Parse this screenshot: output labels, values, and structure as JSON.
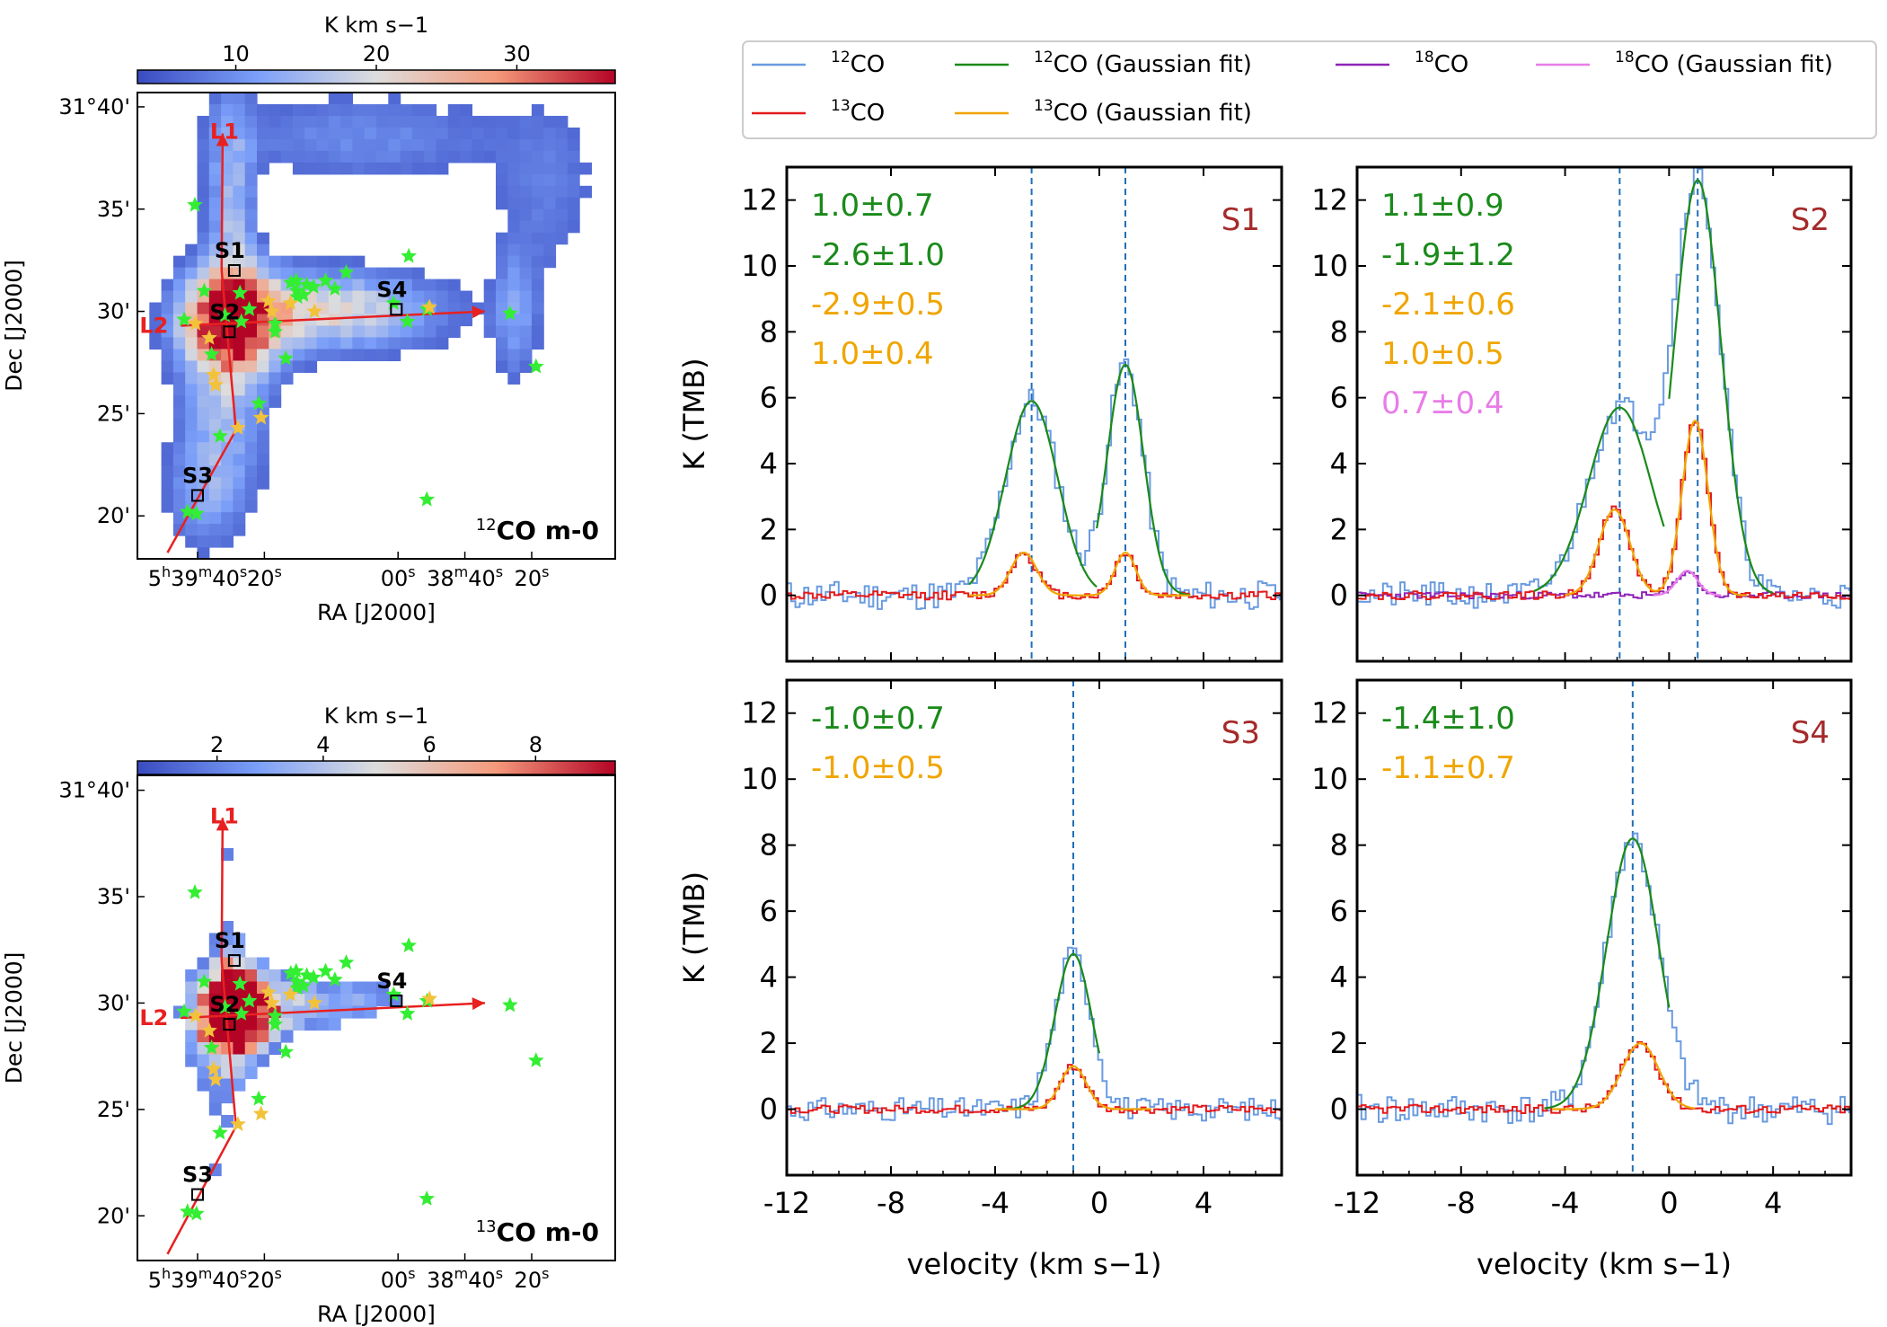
{
  "colors": {
    "co12": "#6a9be0",
    "co13": "#e31a1c",
    "c18o": "#8e24b8",
    "fit12": "#1a8a1a",
    "fit13": "#f0a500",
    "fit18": "#e87ce8",
    "label": "#a52a2a",
    "track": "#e82020",
    "ysoGreen": "#33ee33",
    "ysoYellow": "#f2c23a",
    "vline": "#1f6fb8"
  },
  "chart_data": [
    {
      "id": "map12",
      "type": "heatmap",
      "title": "12CO m-0",
      "title_sup": "12",
      "title_rest": "CO m-0",
      "colorbar": {
        "label": "K km s−1",
        "range": [
          3,
          37
        ],
        "ticks": [
          {
            "v": 10,
            "t": "10"
          },
          {
            "v": 20,
            "t": "20"
          },
          {
            "v": 30,
            "t": "30"
          }
        ]
      },
      "xlabel": "RA [J2000]",
      "ylabel": "Dec [J2000]",
      "ra_range_s": [
        -98,
        45
      ],
      "dec_range_min": [
        17.9,
        40.7
      ],
      "xticks": [
        {
          "v": -80,
          "main": "5",
          "s1": "h",
          "m2": "39",
          "s2": "m",
          "m3": "40",
          "s3": "s"
        },
        {
          "v": -60,
          "main": "20",
          "s1": "s"
        },
        {
          "v": -20,
          "main": "00",
          "s1": "s"
        },
        {
          "v": 0,
          "main": "38",
          "s1": "m",
          "m2": "40",
          "s2": "s"
        },
        {
          "v": 20,
          "main": "20",
          "s1": "s"
        }
      ],
      "yticks": [
        {
          "v": 40,
          "t": "31°40'"
        },
        {
          "v": 35,
          "t": "35'"
        },
        {
          "v": 30,
          "t": "30'"
        },
        {
          "v": 25,
          "t": "25'"
        },
        {
          "v": 20,
          "t": "20'"
        }
      ]
    },
    {
      "id": "map13",
      "type": "heatmap",
      "title": "13CO m-0",
      "title_sup": "13",
      "title_rest": "CO m-0",
      "colorbar": {
        "label": "K km s−1",
        "range": [
          0.5,
          9.5
        ],
        "ticks": [
          {
            "v": 2,
            "t": "2"
          },
          {
            "v": 4,
            "t": "4"
          },
          {
            "v": 6,
            "t": "6"
          },
          {
            "v": 8,
            "t": "8"
          }
        ]
      },
      "xlabel": "RA [J2000]",
      "ylabel": "Dec [J2000]",
      "ra_range_s": [
        -98,
        45
      ],
      "dec_range_min": [
        17.9,
        40.7
      ],
      "xticks": [
        {
          "v": -80,
          "main": "5",
          "s1": "h",
          "m2": "39",
          "s2": "m",
          "m3": "40",
          "s3": "s"
        },
        {
          "v": -60,
          "main": "20",
          "s1": "s"
        },
        {
          "v": -20,
          "main": "00",
          "s1": "s"
        },
        {
          "v": 0,
          "main": "38",
          "s1": "m",
          "m2": "40",
          "s2": "s"
        },
        {
          "v": 20,
          "main": "20",
          "s1": "s"
        }
      ],
      "yticks": [
        {
          "v": 40,
          "t": "31°40'"
        },
        {
          "v": 35,
          "t": "35'"
        },
        {
          "v": 30,
          "t": "30'"
        },
        {
          "v": 25,
          "t": "25'"
        },
        {
          "v": 20,
          "t": "20'"
        }
      ]
    },
    {
      "id": "legend",
      "type": "legend",
      "entries": [
        {
          "sup": "12",
          "text": "CO",
          "color": "co12"
        },
        {
          "sup": "12",
          "text": "CO (Gaussian fit)",
          "color": "fit12"
        },
        {
          "sup": "18",
          "text": "CO",
          "color": "c18o"
        },
        {
          "sup": "18",
          "text": "CO (Gaussian fit)",
          "color": "fit18"
        },
        {
          "sup": "13",
          "text": "CO",
          "color": "co13"
        },
        {
          "sup": "13",
          "text": "CO (Gaussian fit)",
          "color": "fit13"
        }
      ]
    },
    {
      "id": "S1",
      "type": "line",
      "label": "S1",
      "xlim": [
        -12,
        7
      ],
      "ylim": [
        -2,
        13
      ],
      "xticks": [
        {
          "v": -12,
          "t": "-12"
        },
        {
          "v": -8,
          "t": "-8"
        },
        {
          "v": -4,
          "t": "-4"
        },
        {
          "v": 0,
          "t": "0"
        },
        {
          "v": 4,
          "t": "4"
        }
      ],
      "yticks": [
        {
          "v": 0,
          "t": "0"
        },
        {
          "v": 2,
          "t": "2"
        },
        {
          "v": 4,
          "t": "4"
        },
        {
          "v": 6,
          "t": "6"
        },
        {
          "v": 8,
          "t": "8"
        },
        {
          "v": 10,
          "t": "10"
        },
        {
          "v": 12,
          "t": "12"
        }
      ],
      "ylabel": "K (TMB)",
      "xlabel": "",
      "vlines": [
        -2.6,
        1.0
      ],
      "annotations": [
        {
          "text": "1.0±0.7",
          "color": "fit12"
        },
        {
          "text": "-2.6±1.0",
          "color": "fit12"
        },
        {
          "text": "-2.9±0.5",
          "color": "fit13"
        },
        {
          "text": "1.0±0.4",
          "color": "fit13"
        }
      ],
      "series": [
        {
          "name": "12CO",
          "color": "co12",
          "components": [
            {
              "a": 5.9,
              "v": -2.6,
              "s": 1.0
            },
            {
              "a": 7.0,
              "v": 1.0,
              "s": 0.7
            }
          ],
          "noise": 0.45,
          "range": [
            -12,
            7
          ],
          "seed": 11
        },
        {
          "name": "13CO",
          "color": "co13",
          "components": [
            {
              "a": 1.3,
              "v": -2.9,
              "s": 0.5
            },
            {
              "a": 1.3,
              "v": 1.0,
              "s": 0.4
            }
          ],
          "noise": 0.13,
          "range": [
            -12,
            7
          ],
          "seed": 12
        },
        {
          "name": "12CO fit a",
          "color": "fit12",
          "fit": true,
          "components": [
            {
              "a": 5.9,
              "v": -2.6,
              "s": 1.0
            }
          ],
          "range": [
            -5.0,
            -0.1
          ]
        },
        {
          "name": "12CO fit b",
          "color": "fit12",
          "fit": true,
          "components": [
            {
              "a": 7.0,
              "v": 1.0,
              "s": 0.7
            }
          ],
          "range": [
            -0.1,
            3.5
          ]
        },
        {
          "name": "13CO fit",
          "color": "fit13",
          "fit": true,
          "components": [
            {
              "a": 1.3,
              "v": -2.9,
              "s": 0.5
            },
            {
              "a": 1.3,
              "v": 1.0,
              "s": 0.4
            }
          ],
          "range": [
            -5.0,
            3.5
          ]
        }
      ]
    },
    {
      "id": "S2",
      "type": "line",
      "label": "S2",
      "xlim": [
        -12,
        7
      ],
      "ylim": [
        -2,
        13
      ],
      "xticks": [
        {
          "v": -12,
          "t": "-12"
        },
        {
          "v": -8,
          "t": "-8"
        },
        {
          "v": -4,
          "t": "-4"
        },
        {
          "v": 0,
          "t": "0"
        },
        {
          "v": 4,
          "t": "4"
        }
      ],
      "yticks": [
        {
          "v": 0,
          "t": "0"
        },
        {
          "v": 2,
          "t": "2"
        },
        {
          "v": 4,
          "t": "4"
        },
        {
          "v": 6,
          "t": "6"
        },
        {
          "v": 8,
          "t": "8"
        },
        {
          "v": 10,
          "t": "10"
        },
        {
          "v": 12,
          "t": "12"
        }
      ],
      "ylabel": "",
      "xlabel": "",
      "vlines": [
        -1.9,
        1.1
      ],
      "annotations": [
        {
          "text": "1.1±0.9",
          "color": "fit12"
        },
        {
          "text": "-1.9±1.2",
          "color": "fit12"
        },
        {
          "text": "-2.1±0.6",
          "color": "fit13"
        },
        {
          "text": "1.0±0.5",
          "color": "fit13"
        },
        {
          "text": "0.7±0.4",
          "color": "fit18"
        }
      ],
      "series": [
        {
          "name": "12CO",
          "color": "co12",
          "components": [
            {
              "a": 5.7,
              "v": -1.9,
              "s": 1.2
            },
            {
              "a": 12.6,
              "v": 1.1,
              "s": 0.9
            }
          ],
          "noise": 0.4,
          "range": [
            -12,
            7
          ],
          "seed": 21
        },
        {
          "name": "C18O",
          "color": "c18o",
          "components": [
            {
              "a": 0.75,
              "v": 0.7,
              "s": 0.4
            }
          ],
          "noise": 0.1,
          "range": [
            -12,
            7
          ],
          "seed": 23
        },
        {
          "name": "13CO",
          "color": "co13",
          "components": [
            {
              "a": 2.6,
              "v": -2.1,
              "s": 0.6
            },
            {
              "a": 5.3,
              "v": 1.0,
              "s": 0.5
            }
          ],
          "noise": 0.12,
          "range": [
            -12,
            7
          ],
          "seed": 22
        },
        {
          "name": "12CO fit a",
          "color": "fit12",
          "fit": true,
          "components": [
            {
              "a": 5.7,
              "v": -1.9,
              "s": 1.2
            }
          ],
          "range": [
            -5.2,
            -0.2
          ]
        },
        {
          "name": "12CO fit b",
          "color": "fit12",
          "fit": true,
          "components": [
            {
              "a": 12.6,
              "v": 1.1,
              "s": 0.9
            }
          ],
          "range": [
            0.0,
            4.0
          ]
        },
        {
          "name": "13CO fit",
          "color": "fit13",
          "fit": true,
          "components": [
            {
              "a": 2.6,
              "v": -2.1,
              "s": 0.6
            },
            {
              "a": 5.3,
              "v": 1.0,
              "s": 0.5
            }
          ],
          "range": [
            -4.0,
            3.0
          ]
        },
        {
          "name": "C18O fit",
          "color": "fit18",
          "fit": true,
          "components": [
            {
              "a": 0.75,
              "v": 0.7,
              "s": 0.4
            }
          ],
          "range": [
            -0.6,
            2.0
          ]
        }
      ]
    },
    {
      "id": "S3",
      "type": "line",
      "label": "S3",
      "xlim": [
        -12,
        7
      ],
      "ylim": [
        -2,
        13
      ],
      "xticks": [
        {
          "v": -12,
          "t": "-12"
        },
        {
          "v": -8,
          "t": "-8"
        },
        {
          "v": -4,
          "t": "-4"
        },
        {
          "v": 0,
          "t": "0"
        },
        {
          "v": 4,
          "t": "4"
        }
      ],
      "yticks": [
        {
          "v": 0,
          "t": "0"
        },
        {
          "v": 2,
          "t": "2"
        },
        {
          "v": 4,
          "t": "4"
        },
        {
          "v": 6,
          "t": "6"
        },
        {
          "v": 8,
          "t": "8"
        },
        {
          "v": 10,
          "t": "10"
        },
        {
          "v": 12,
          "t": "12"
        }
      ],
      "ylabel": "K (TMB)",
      "xlabel": "velocity (km s−1)",
      "vlines": [
        -1.0
      ],
      "annotations": [
        {
          "text": "-1.0±0.7",
          "color": "fit12"
        },
        {
          "text": "-1.0±0.5",
          "color": "fit13"
        }
      ],
      "series": [
        {
          "name": "12CO",
          "color": "co12",
          "components": [
            {
              "a": 4.7,
              "v": -1.0,
              "s": 0.7
            }
          ],
          "noise": 0.35,
          "range": [
            -12,
            7
          ],
          "seed": 31
        },
        {
          "name": "13CO",
          "color": "co13",
          "components": [
            {
              "a": 1.3,
              "v": -1.0,
              "s": 0.5
            }
          ],
          "noise": 0.12,
          "range": [
            -12,
            7
          ],
          "seed": 32
        },
        {
          "name": "12CO fit",
          "color": "fit12",
          "fit": true,
          "components": [
            {
              "a": 4.7,
              "v": -1.0,
              "s": 0.7
            }
          ],
          "range": [
            -3.8,
            0.0
          ]
        },
        {
          "name": "13CO fit",
          "color": "fit13",
          "fit": true,
          "components": [
            {
              "a": 1.3,
              "v": -1.0,
              "s": 0.5
            }
          ],
          "range": [
            -4.0,
            2.0
          ]
        }
      ]
    },
    {
      "id": "S4",
      "type": "line",
      "label": "S4",
      "xlim": [
        -12,
        7
      ],
      "ylim": [
        -2,
        13
      ],
      "xticks": [
        {
          "v": -12,
          "t": "-12"
        },
        {
          "v": -8,
          "t": "-8"
        },
        {
          "v": -4,
          "t": "-4"
        },
        {
          "v": 0,
          "t": "0"
        },
        {
          "v": 4,
          "t": "4"
        }
      ],
      "yticks": [
        {
          "v": 0,
          "t": "0"
        },
        {
          "v": 2,
          "t": "2"
        },
        {
          "v": 4,
          "t": "4"
        },
        {
          "v": 6,
          "t": "6"
        },
        {
          "v": 8,
          "t": "8"
        },
        {
          "v": 10,
          "t": "10"
        },
        {
          "v": 12,
          "t": "12"
        }
      ],
      "ylabel": "",
      "xlabel": "velocity (km s−1)",
      "vlines": [
        -1.4
      ],
      "annotations": [
        {
          "text": "-1.4±1.0",
          "color": "fit12"
        },
        {
          "text": "-1.1±0.7",
          "color": "fit13"
        }
      ],
      "series": [
        {
          "name": "12CO",
          "color": "co12",
          "components": [
            {
              "a": 8.2,
              "v": -1.4,
              "s": 1.0
            }
          ],
          "noise": 0.45,
          "range": [
            -12,
            7
          ],
          "seed": 41
        },
        {
          "name": "13CO",
          "color": "co13",
          "components": [
            {
              "a": 2.0,
              "v": -1.1,
              "s": 0.7
            }
          ],
          "noise": 0.13,
          "range": [
            -12,
            7
          ],
          "seed": 42
        },
        {
          "name": "12CO fit",
          "color": "fit12",
          "fit": true,
          "components": [
            {
              "a": 8.2,
              "v": -1.4,
              "s": 1.0
            }
          ],
          "range": [
            -4.8,
            0.0
          ]
        },
        {
          "name": "13CO fit",
          "color": "fit13",
          "fit": true,
          "components": [
            {
              "a": 2.0,
              "v": -1.1,
              "s": 0.7
            }
          ],
          "range": [
            -4.5,
            1.0
          ]
        }
      ]
    }
  ],
  "map_marks": {
    "track_labels": [
      "L1",
      "L2"
    ],
    "track_points": [
      {
        "name": "L1_top",
        "ra": -72.5,
        "dec": 38.7
      },
      {
        "name": "L1_mid",
        "ra": -72.8,
        "dec": 32.0
      },
      {
        "name": "L1_bend",
        "ra": -68.5,
        "dec": 24.2
      },
      {
        "name": "L1_end",
        "ra": -89.0,
        "dec": 18.2
      },
      {
        "name": "L2_start",
        "ra": -85.0,
        "dec": 29.3
      },
      {
        "name": "L2_end",
        "ra": 6.0,
        "dec": 30.0
      }
    ],
    "positions": [
      {
        "label": "S1",
        "ra": -69.0,
        "dec": 32.0
      },
      {
        "label": "S2",
        "ra": -70.5,
        "dec": 29.0
      },
      {
        "label": "S3",
        "ra": -80.0,
        "dec": 21.0
      },
      {
        "label": "S4",
        "ra": -20.5,
        "dec": 30.1
      }
    ],
    "yso_green": [
      [
        -80.8,
        35.2
      ],
      [
        -84.0,
        29.6
      ],
      [
        -71.8,
        29.8
      ],
      [
        -66.9,
        29.5
      ],
      [
        -75.8,
        27.9
      ],
      [
        -67.3,
        30.9
      ],
      [
        -56.8,
        29.0
      ],
      [
        -56.8,
        29.4
      ],
      [
        -53.6,
        27.7
      ],
      [
        -52.1,
        31.4
      ],
      [
        -50.5,
        31.5
      ],
      [
        -50.3,
        31.0
      ],
      [
        -50.1,
        30.7
      ],
      [
        -48.3,
        30.8
      ],
      [
        -47.3,
        31.3
      ],
      [
        -45.3,
        31.2
      ],
      [
        -41.7,
        31.5
      ],
      [
        -38.9,
        31.1
      ],
      [
        -35.5,
        31.9
      ],
      [
        -16.8,
        32.7
      ],
      [
        -21.3,
        30.4
      ],
      [
        -17.2,
        29.5
      ],
      [
        -11.3,
        30.1
      ],
      [
        13.5,
        29.9
      ],
      [
        21.3,
        27.3
      ],
      [
        -11.4,
        20.8
      ],
      [
        -80.3,
        20.1
      ],
      [
        -83.0,
        20.2
      ],
      [
        -73.3,
        23.9
      ],
      [
        -61.7,
        25.5
      ],
      [
        -64.5,
        30.1
      ],
      [
        -78.0,
        31.0
      ]
    ],
    "yso_yellow": [
      [
        -80.6,
        29.4
      ],
      [
        -76.5,
        28.7
      ],
      [
        -58.8,
        30.5
      ],
      [
        -52.2,
        30.4
      ],
      [
        -75.2,
        26.9
      ],
      [
        -74.6,
        26.4
      ],
      [
        -61.0,
        24.8
      ],
      [
        -67.9,
        24.3
      ],
      [
        -57.8,
        30.0
      ],
      [
        -10.6,
        30.2
      ],
      [
        -45.0,
        30.0
      ]
    ]
  }
}
